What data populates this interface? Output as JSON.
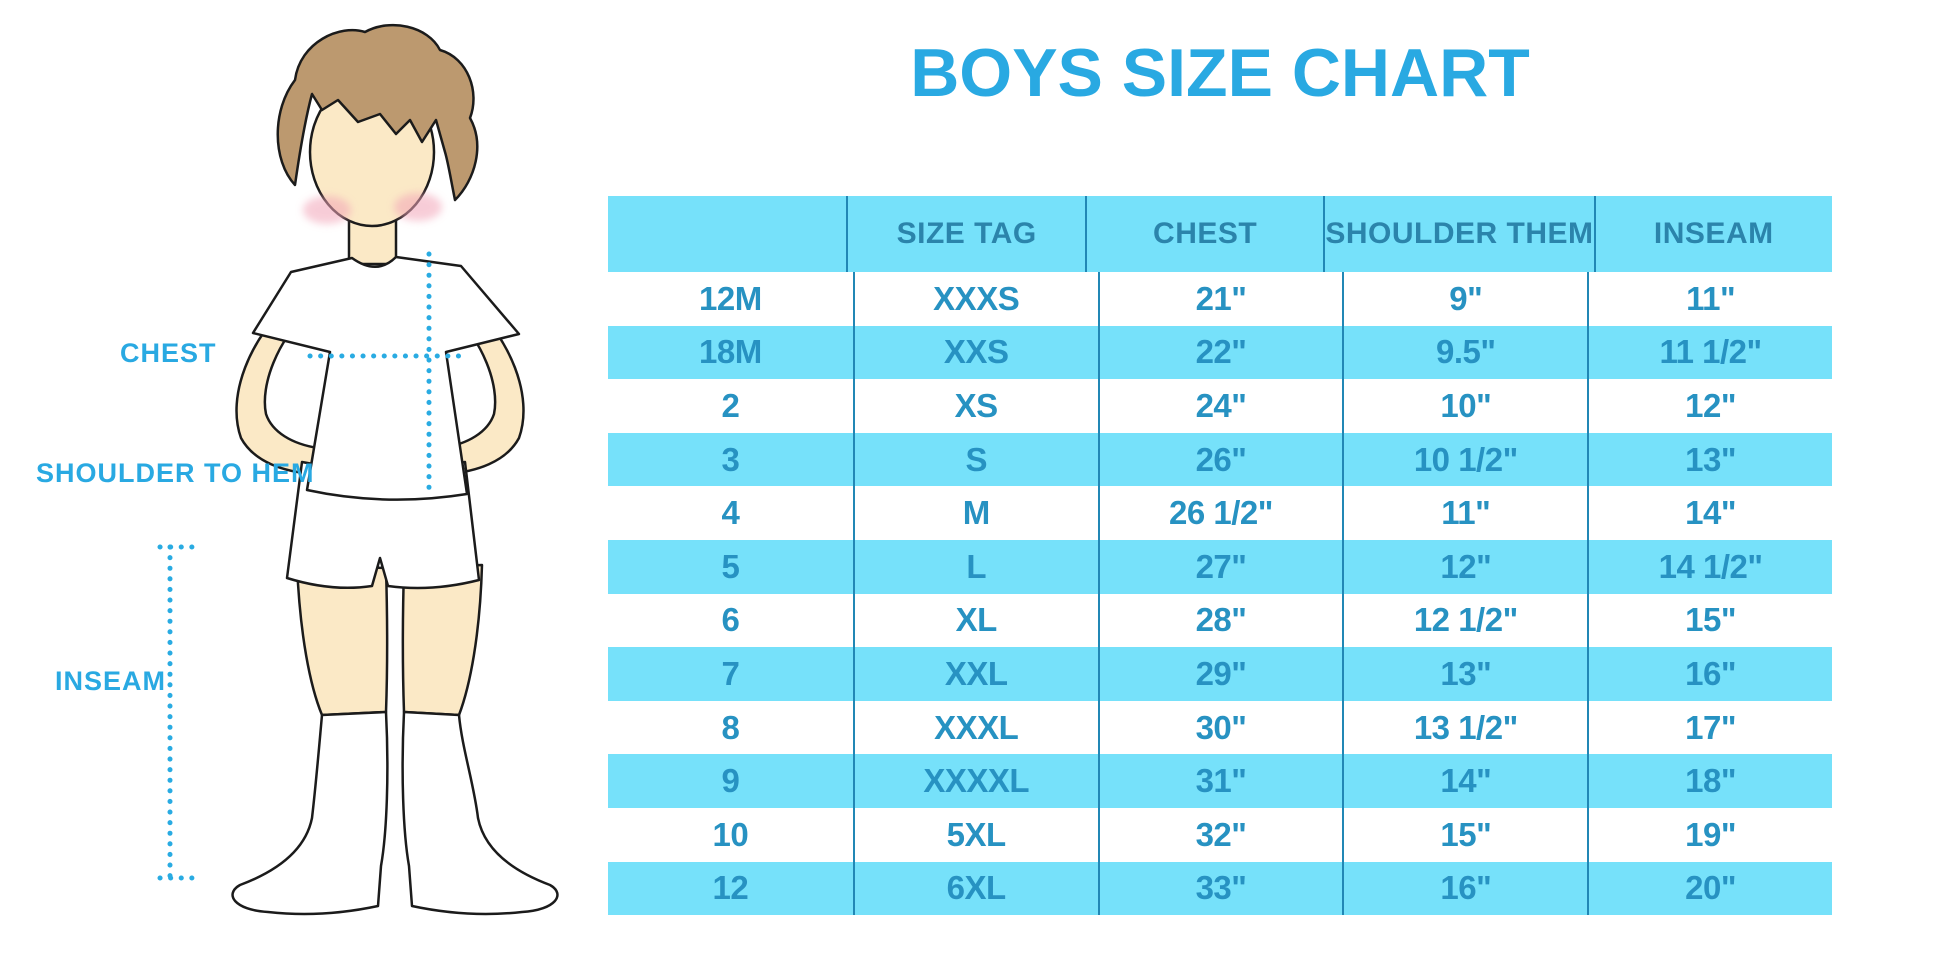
{
  "title": "BOYS SIZE CHART",
  "figure_labels": {
    "chest": "CHEST",
    "shoulder_to_hem": "SHOULDER TO HEM",
    "inseam": "INSEAM"
  },
  "colors": {
    "title-blue": "#29A9E2",
    "label-blue": "#29A9E2",
    "row-cyan": "#76E1FA",
    "line-teal": "#2187B5",
    "header-text": "#2B84AB",
    "cell-text": "#2792C2",
    "dot-cyan": "#29ABE2",
    "hair-brown": "#BC996F",
    "skin": "#FBE9C6",
    "blush-pink": "#F2A4B8"
  },
  "chart_data": {
    "type": "table",
    "title": "BOYS SIZE CHART",
    "columns": [
      "",
      "SIZE TAG",
      "CHEST",
      "SHOULDER THEM",
      "INSEAM"
    ],
    "rows": [
      [
        "12M",
        "XXXS",
        "21\"",
        "9\"",
        "11\""
      ],
      [
        "18M",
        "XXS",
        "22\"",
        "9.5\"",
        "11 1/2\""
      ],
      [
        "2",
        "XS",
        "24\"",
        "10\"",
        "12\""
      ],
      [
        "3",
        "S",
        "26\"",
        "10 1/2\"",
        "13\""
      ],
      [
        "4",
        "M",
        "26 1/2\"",
        "11\"",
        "14\""
      ],
      [
        "5",
        "L",
        "27\"",
        "12\"",
        "14 1/2\""
      ],
      [
        "6",
        "XL",
        "28\"",
        "12 1/2\"",
        "15\""
      ],
      [
        "7",
        "XXL",
        "29\"",
        "13\"",
        "16\""
      ],
      [
        "8",
        "XXXL",
        "30\"",
        "13 1/2\"",
        "17\""
      ],
      [
        "9",
        "XXXXL",
        "31\"",
        "14\"",
        "18\""
      ],
      [
        "10",
        "5XL",
        "32\"",
        "15\"",
        "19\""
      ],
      [
        "12",
        "6XL",
        "33\"",
        "16\"",
        "20\""
      ]
    ],
    "row_striping": "white/cyan alternating, header cyan",
    "legend_position": "none",
    "grid": "vertical separators only"
  }
}
